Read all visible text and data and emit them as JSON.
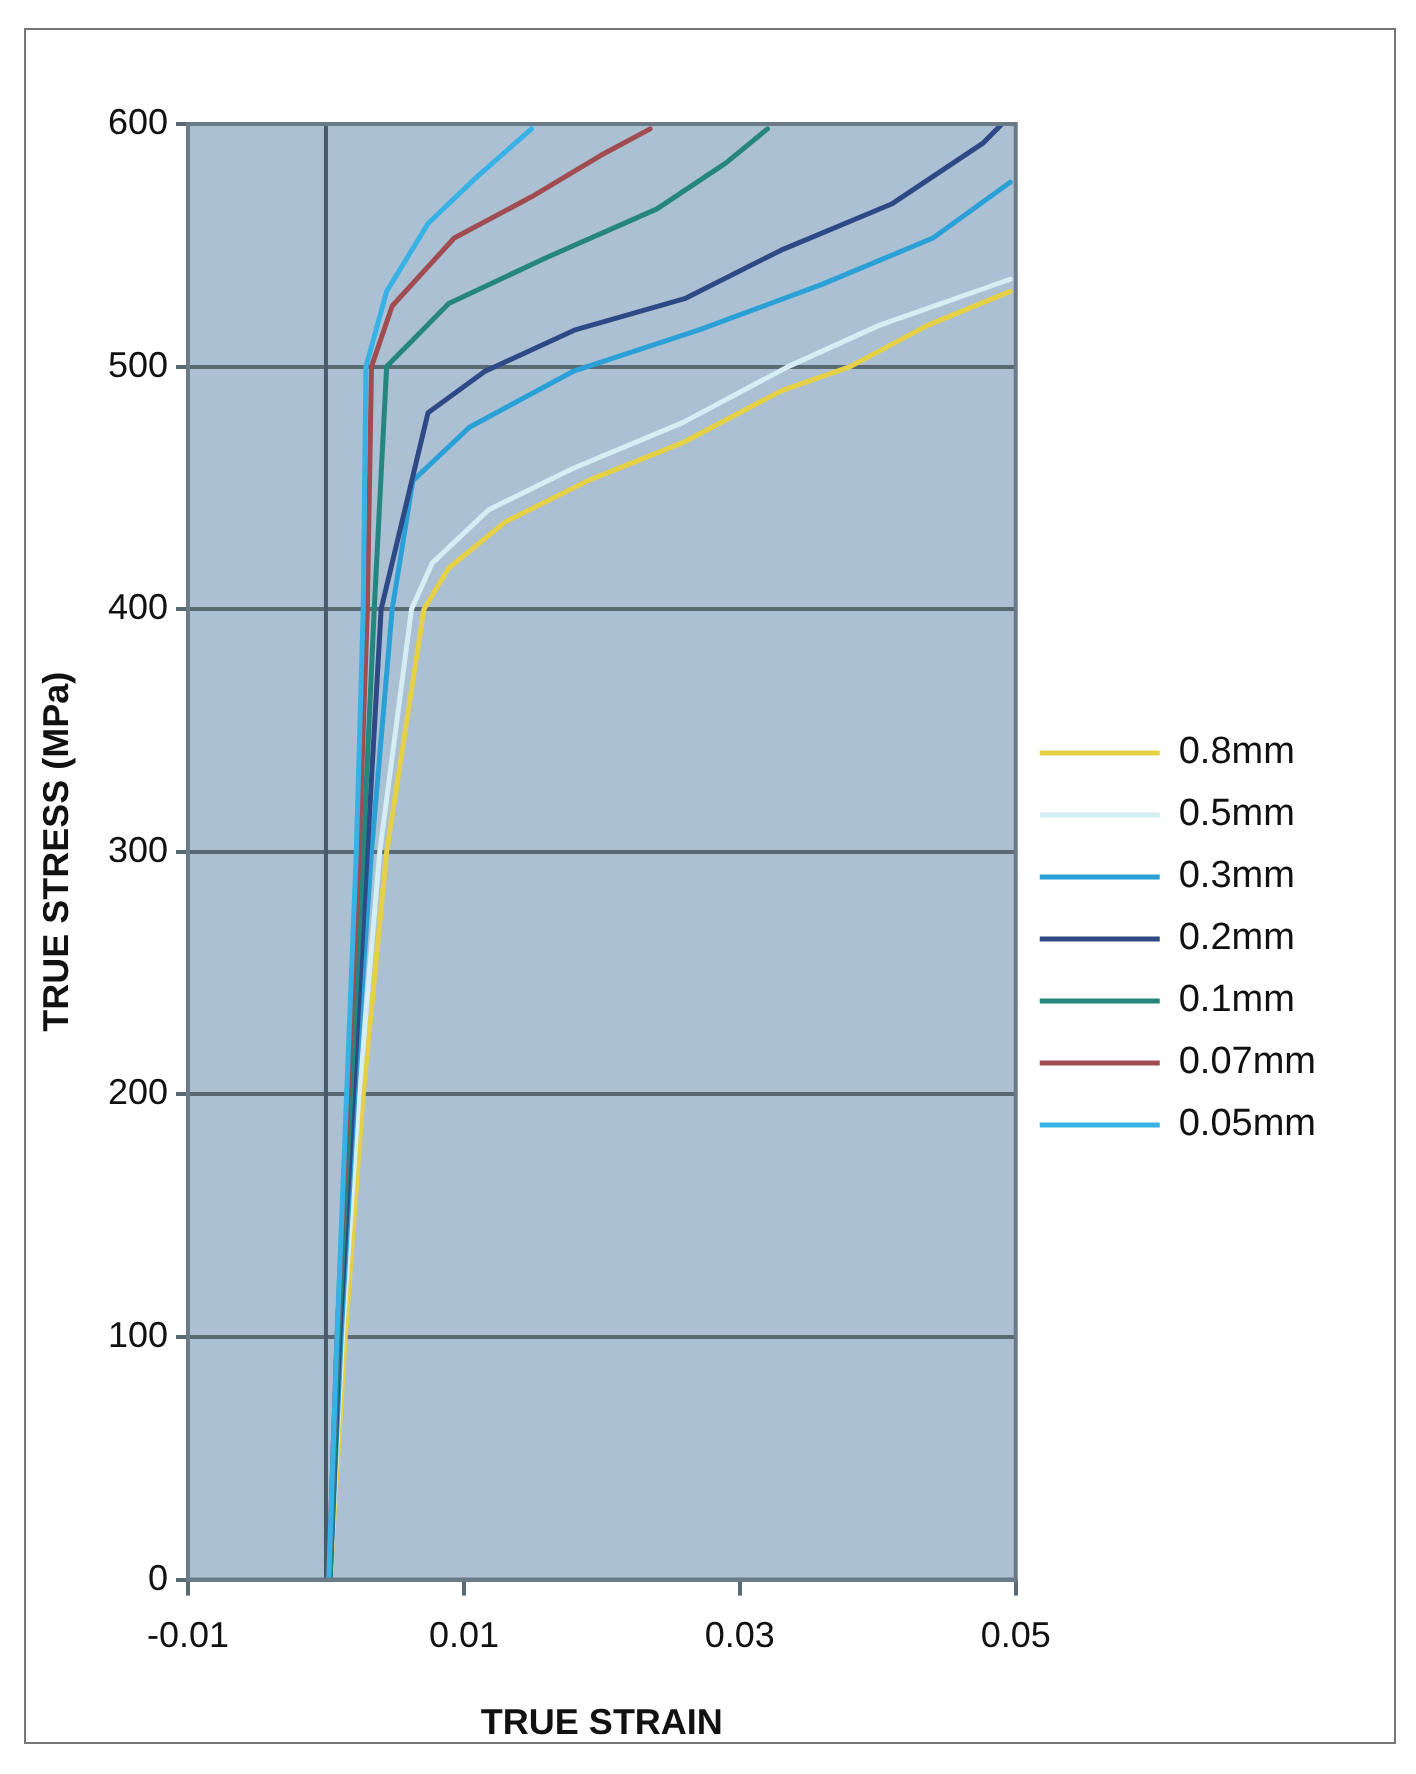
{
  "chart_data": {
    "type": "line",
    "xlabel": "TRUE STRAIN",
    "ylabel": "TRUE STRESS (MPa)",
    "xlim": [
      -0.01,
      0.05
    ],
    "xticks": [
      -0.01,
      0.01,
      0.03,
      0.05
    ],
    "ylim": [
      0,
      600
    ],
    "yticks": [
      0,
      100,
      200,
      300,
      400,
      500,
      600
    ],
    "grid": "y",
    "legend": "right",
    "marker": "none",
    "line_style": "solid",
    "ref_lines": [
      {
        "axis": "x",
        "value": 0,
        "color": "#4a5a66"
      }
    ],
    "series": [
      {
        "name": "0.8mm",
        "color": "#e6d046",
        "x": [
          0.0003,
          0.0014,
          0.0027,
          0.0044,
          0.0071,
          0.0089,
          0.013,
          0.019,
          0.026,
          0.033,
          0.038,
          0.0436,
          0.0496
        ],
        "values": [
          0,
          100,
          200,
          300,
          400,
          417,
          436,
          453,
          469,
          490,
          500,
          517,
          531
        ]
      },
      {
        "name": "0.5mm",
        "color": "#d4eef4",
        "x": [
          0.0003,
          0.0012,
          0.0024,
          0.0039,
          0.0062,
          0.0077,
          0.0118,
          0.0179,
          0.0259,
          0.0335,
          0.0401,
          0.0496
        ],
        "values": [
          0,
          100,
          200,
          300,
          400,
          419,
          441,
          458,
          477,
          500,
          517,
          536
        ]
      },
      {
        "name": "0.3mm",
        "color": "#2aa0d6",
        "x": [
          0.0003,
          0.0011,
          0.0021,
          0.0033,
          0.0048,
          0.0063,
          0.0104,
          0.0179,
          0.027,
          0.036,
          0.044,
          0.0496
        ],
        "values": [
          0,
          100,
          200,
          300,
          400,
          453,
          475,
          498,
          515,
          534,
          553,
          576
        ]
      },
      {
        "name": "0.2mm",
        "color": "#2e4a86",
        "x": [
          0.0003,
          0.001,
          0.002,
          0.003,
          0.004,
          0.0074,
          0.0115,
          0.018,
          0.026,
          0.033,
          0.041,
          0.0476,
          0.049
        ],
        "values": [
          0,
          100,
          200,
          300,
          400,
          481,
          498,
          515,
          528,
          548,
          567,
          592,
          600
        ]
      },
      {
        "name": "0.1mm",
        "color": "#24867c",
        "x": [
          0.0003,
          0.0009,
          0.0018,
          0.0027,
          0.0035,
          0.0044,
          0.0089,
          0.016,
          0.024,
          0.029,
          0.032
        ],
        "values": [
          0,
          100,
          200,
          300,
          400,
          500,
          526,
          545,
          565,
          584,
          598
        ]
      },
      {
        "name": "0.07mm",
        "color": "#a04c50",
        "x": [
          0.0002,
          0.0008,
          0.0016,
          0.0024,
          0.003,
          0.0033,
          0.0048,
          0.0093,
          0.0149,
          0.0199,
          0.0235
        ],
        "values": [
          0,
          100,
          200,
          300,
          400,
          500,
          525,
          553,
          570,
          587,
          598
        ]
      },
      {
        "name": "0.05mm",
        "color": "#36b2e6",
        "x": [
          0.0002,
          0.0008,
          0.0015,
          0.0022,
          0.0027,
          0.0029,
          0.0044,
          0.0074,
          0.0109,
          0.0149
        ],
        "values": [
          0,
          100,
          200,
          300,
          400,
          500,
          531,
          559,
          578,
          598
        ]
      }
    ]
  }
}
